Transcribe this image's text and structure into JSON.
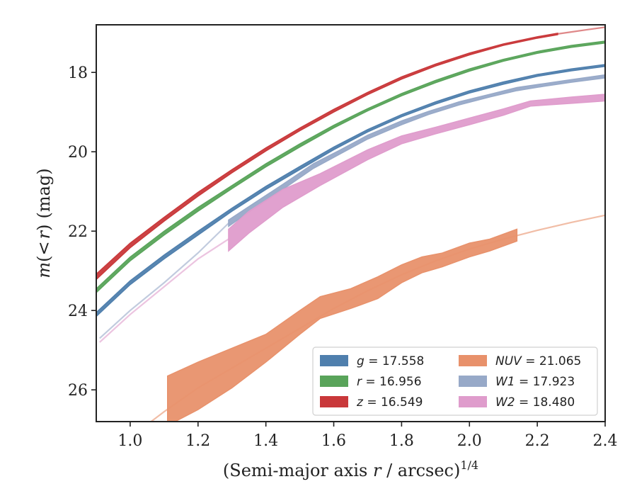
{
  "chart_data": {
    "type": "line",
    "xlabel_main": "(Semi-major axis ",
    "xlabel_var": "r",
    "xlabel_tail": " / arcsec)",
    "xlabel_exp": "1/4",
    "ylabel_var": "m",
    "ylabel_open": "(<",
    "ylabel_close": ")",
    "ylabel_unit": "(mag)",
    "xlim": [
      0.9,
      2.4
    ],
    "ylim": [
      26.8,
      16.8
    ],
    "y_inverted": true,
    "xticks": [
      1.0,
      1.2,
      1.4,
      1.6,
      1.8,
      2.0,
      2.2,
      2.4
    ],
    "xtick_labels": [
      "1.0",
      "1.2",
      "1.4",
      "1.6",
      "1.8",
      "2.0",
      "2.2",
      "2.4"
    ],
    "yticks": [
      18,
      20,
      22,
      24,
      26
    ],
    "ytick_labels": [
      "18",
      "20",
      "22",
      "24",
      "26"
    ],
    "grid": false,
    "legend_position": "lower-right",
    "series": [
      {
        "name": "g",
        "label_value": "= 17.558",
        "color": "#4f7fad",
        "band": [
          [
            0.9,
            24.15,
            24.05
          ],
          [
            1.0,
            23.35,
            23.25
          ],
          [
            1.1,
            22.7,
            22.6
          ],
          [
            1.2,
            22.1,
            22.0
          ],
          [
            1.3,
            21.5,
            21.42
          ],
          [
            1.4,
            20.95,
            20.87
          ],
          [
            1.5,
            20.45,
            20.37
          ],
          [
            1.6,
            19.95,
            19.88
          ],
          [
            1.7,
            19.5,
            19.44
          ],
          [
            1.8,
            19.12,
            19.06
          ],
          [
            1.9,
            18.8,
            18.74
          ],
          [
            2.0,
            18.52,
            18.46
          ],
          [
            2.1,
            18.3,
            18.24
          ],
          [
            2.2,
            18.1,
            18.05
          ],
          [
            2.3,
            17.96,
            17.91
          ],
          [
            2.4,
            17.85,
            17.8
          ]
        ],
        "extrapolation": []
      },
      {
        "name": "r",
        "label_value": "= 16.956",
        "color": "#59a45a",
        "band": [
          [
            0.9,
            23.55,
            23.45
          ],
          [
            1.0,
            22.75,
            22.65
          ],
          [
            1.1,
            22.1,
            22.0
          ],
          [
            1.2,
            21.5,
            21.4
          ],
          [
            1.3,
            20.93,
            20.85
          ],
          [
            1.4,
            20.38,
            20.3
          ],
          [
            1.5,
            19.88,
            19.8
          ],
          [
            1.6,
            19.4,
            19.33
          ],
          [
            1.7,
            18.97,
            18.91
          ],
          [
            1.8,
            18.59,
            18.53
          ],
          [
            1.9,
            18.26,
            18.2
          ],
          [
            2.0,
            17.97,
            17.91
          ],
          [
            2.1,
            17.72,
            17.67
          ],
          [
            2.2,
            17.52,
            17.47
          ],
          [
            2.3,
            17.37,
            17.32
          ],
          [
            2.4,
            17.26,
            17.21
          ]
        ],
        "extrapolation": []
      },
      {
        "name": "z",
        "label_value": "= 16.549",
        "color": "#c9383a",
        "band": [
          [
            0.9,
            23.22,
            23.08
          ],
          [
            1.0,
            22.42,
            22.3
          ],
          [
            1.1,
            21.75,
            21.65
          ],
          [
            1.2,
            21.12,
            21.02
          ],
          [
            1.3,
            20.53,
            20.45
          ],
          [
            1.4,
            19.98,
            19.9
          ],
          [
            1.5,
            19.47,
            19.4
          ],
          [
            1.6,
            19.0,
            18.93
          ],
          [
            1.7,
            18.56,
            18.5
          ],
          [
            1.8,
            18.17,
            18.11
          ],
          [
            1.9,
            17.84,
            17.79
          ],
          [
            2.0,
            17.56,
            17.51
          ],
          [
            2.1,
            17.32,
            17.28
          ],
          [
            2.2,
            17.14,
            17.1
          ],
          [
            2.26,
            17.05,
            17.01
          ]
        ],
        "extrapolation": [
          [
            2.26,
            17.03
          ],
          [
            2.3,
            16.98
          ],
          [
            2.35,
            16.92
          ],
          [
            2.4,
            16.86
          ]
        ]
      },
      {
        "name": "NUV",
        "label_value": "= 21.065",
        "color": "#e8916b",
        "band": [
          [
            1.11,
            25.65,
            26.9
          ],
          [
            1.2,
            25.3,
            26.5
          ],
          [
            1.3,
            24.95,
            25.95
          ],
          [
            1.4,
            24.6,
            25.3
          ],
          [
            1.5,
            24.0,
            24.6
          ],
          [
            1.56,
            23.65,
            24.2
          ],
          [
            1.65,
            23.45,
            23.95
          ],
          [
            1.73,
            23.15,
            23.7
          ],
          [
            1.8,
            22.85,
            23.3
          ],
          [
            1.86,
            22.65,
            23.05
          ],
          [
            1.92,
            22.55,
            22.9
          ],
          [
            2.0,
            22.3,
            22.65
          ],
          [
            2.06,
            22.2,
            22.5
          ],
          [
            2.14,
            21.95,
            22.25
          ]
        ],
        "extrapolation": [
          [
            0.9,
            27.9
          ],
          [
            1.0,
            27.2
          ],
          [
            1.1,
            26.55
          ],
          [
            1.2,
            25.95
          ],
          [
            1.3,
            25.45
          ],
          [
            1.4,
            24.95
          ],
          [
            1.5,
            24.45
          ],
          [
            1.6,
            23.95
          ],
          [
            1.7,
            23.5
          ],
          [
            1.8,
            23.1
          ],
          [
            1.9,
            22.75
          ],
          [
            2.0,
            22.45
          ],
          [
            2.1,
            22.2
          ],
          [
            2.2,
            21.98
          ],
          [
            2.3,
            21.78
          ],
          [
            2.4,
            21.6
          ]
        ]
      },
      {
        "name": "W1",
        "label_value": "= 17.923",
        "color": "#97a9c8",
        "band": [
          [
            1.29,
            21.72,
            21.88
          ],
          [
            1.35,
            21.38,
            21.52
          ],
          [
            1.45,
            20.82,
            20.95
          ],
          [
            1.54,
            20.3,
            20.42
          ],
          [
            1.62,
            19.95,
            20.05
          ],
          [
            1.7,
            19.58,
            19.68
          ],
          [
            1.8,
            19.22,
            19.32
          ],
          [
            1.88,
            18.98,
            19.06
          ],
          [
            1.97,
            18.74,
            18.82
          ],
          [
            2.06,
            18.55,
            18.62
          ],
          [
            2.14,
            18.38,
            18.46
          ],
          [
            2.22,
            18.28,
            18.35
          ],
          [
            2.3,
            18.18,
            18.25
          ],
          [
            2.4,
            18.06,
            18.14
          ]
        ],
        "extrapolation": [
          [
            0.91,
            24.7
          ],
          [
            1.0,
            24.0
          ],
          [
            1.1,
            23.3
          ],
          [
            1.2,
            22.55
          ],
          [
            1.29,
            21.8
          ]
        ]
      },
      {
        "name": "W2",
        "label_value": "= 18.480",
        "color": "#df9ccc",
        "band": [
          [
            1.29,
            21.95,
            22.5
          ],
          [
            1.35,
            21.5,
            22.05
          ],
          [
            1.45,
            20.95,
            21.4
          ],
          [
            1.56,
            20.55,
            20.85
          ],
          [
            1.7,
            19.95,
            20.2
          ],
          [
            1.8,
            19.6,
            19.8
          ],
          [
            1.9,
            19.38,
            19.55
          ],
          [
            2.0,
            19.15,
            19.32
          ],
          [
            2.1,
            18.92,
            19.08
          ],
          [
            2.18,
            18.72,
            18.85
          ],
          [
            2.3,
            18.62,
            18.78
          ],
          [
            2.4,
            18.55,
            18.72
          ]
        ],
        "extrapolation": [
          [
            0.91,
            24.8
          ],
          [
            1.0,
            24.1
          ],
          [
            1.1,
            23.4
          ],
          [
            1.2,
            22.7
          ],
          [
            1.29,
            22.2
          ]
        ]
      }
    ]
  }
}
